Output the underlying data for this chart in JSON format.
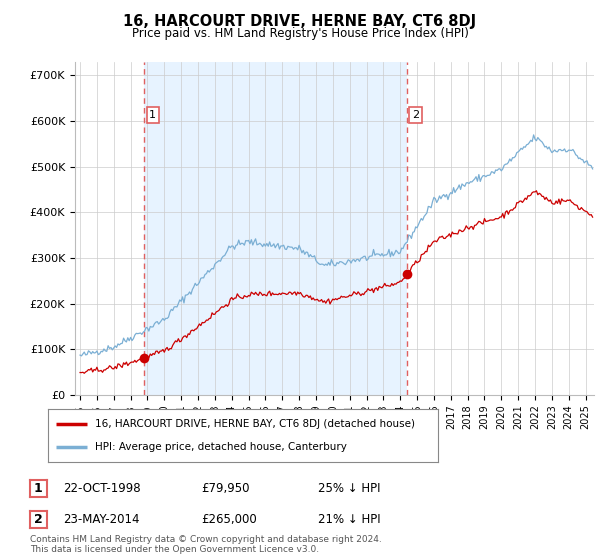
{
  "title": "16, HARCOURT DRIVE, HERNE BAY, CT6 8DJ",
  "subtitle": "Price paid vs. HM Land Registry's House Price Index (HPI)",
  "ylabel_ticks": [
    "£0",
    "£100K",
    "£200K",
    "£300K",
    "£400K",
    "£500K",
    "£600K",
    "£700K"
  ],
  "ytick_vals": [
    0,
    100000,
    200000,
    300000,
    400000,
    500000,
    600000,
    700000
  ],
  "ylim": [
    0,
    730000
  ],
  "xlim_start": 1994.7,
  "xlim_end": 2025.5,
  "sale1_date": 1998.81,
  "sale1_price": 79950,
  "sale1_label": "1",
  "sale2_date": 2014.39,
  "sale2_price": 265000,
  "sale2_label": "2",
  "vline1_x": 1998.81,
  "vline2_x": 2014.39,
  "legend_line1": "16, HARCOURT DRIVE, HERNE BAY, CT6 8DJ (detached house)",
  "legend_line2": "HPI: Average price, detached house, Canterbury",
  "annotation1_date": "22-OCT-1998",
  "annotation1_price": "£79,950",
  "annotation1_hpi": "25% ↓ HPI",
  "annotation2_date": "23-MAY-2014",
  "annotation2_price": "£265,000",
  "annotation2_hpi": "21% ↓ HPI",
  "footer": "Contains HM Land Registry data © Crown copyright and database right 2024.\nThis data is licensed under the Open Government Licence v3.0.",
  "color_sold": "#cc0000",
  "color_hpi": "#7bafd4",
  "color_vline": "#e06060",
  "color_shade": "#ddeeff",
  "background_color": "#ffffff",
  "grid_color": "#cccccc"
}
